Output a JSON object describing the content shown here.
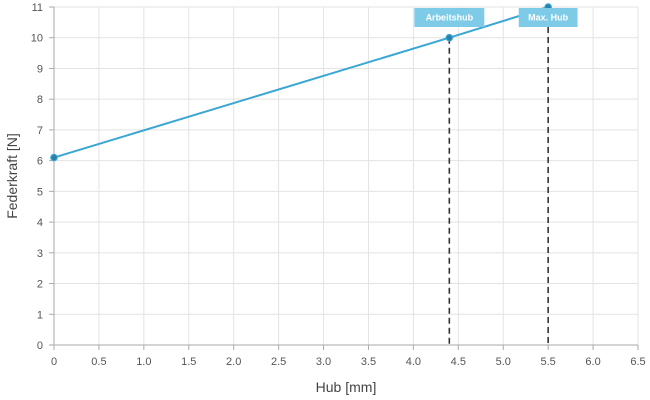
{
  "chart_data": {
    "type": "line",
    "title": "",
    "xlabel": "Hub [mm]",
    "ylabel": "Federkraft [N]",
    "xlim": [
      0,
      6.5
    ],
    "ylim": [
      0,
      11
    ],
    "x_ticks": [
      "0",
      "0.5",
      "1.0",
      "1.5",
      "2.0",
      "2.5",
      "3.0",
      "3.5",
      "4.0",
      "4.5",
      "5.0",
      "5.5",
      "6.0",
      "6.5"
    ],
    "y_ticks": [
      "0",
      "1",
      "2",
      "3",
      "4",
      "5",
      "6",
      "7",
      "8",
      "9",
      "10",
      "11"
    ],
    "grid": true,
    "legend": "none",
    "series": [
      {
        "x": [
          0,
          4.4,
          5.5
        ],
        "y": [
          6.1,
          10,
          11
        ]
      }
    ],
    "annotations": [
      {
        "label": "Arbeitshub",
        "x": 4.4,
        "y": 10
      },
      {
        "label": "Max. Hub",
        "x": 5.5,
        "y": 11
      }
    ],
    "colors": {
      "line": "#3aa6d4",
      "marker": "#2b7fa8",
      "grid": "#e3e3e3",
      "axis": "#aaaaaa",
      "dashed": "#333333",
      "annotation_bg": "#7ecbe8"
    }
  }
}
